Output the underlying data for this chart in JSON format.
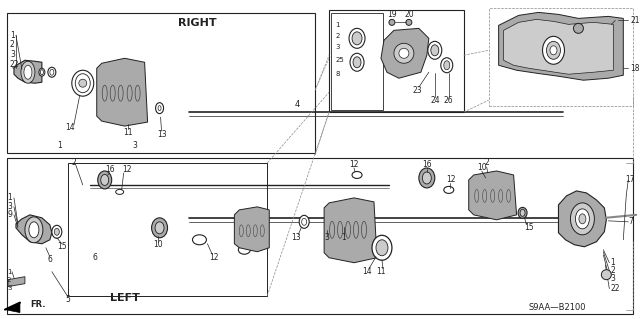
{
  "bg_color": "#ffffff",
  "right_label": "RIGHT",
  "left_label": "LEFT",
  "fr_label": "FR.",
  "part_code": "S9AA—B2100",
  "fig_width": 6.4,
  "fig_height": 3.19,
  "dpi": 100,
  "line_color": "#222222",
  "gray1": "#888888",
  "gray2": "#aaaaaa",
  "gray3": "#cccccc",
  "darkgray": "#444444"
}
